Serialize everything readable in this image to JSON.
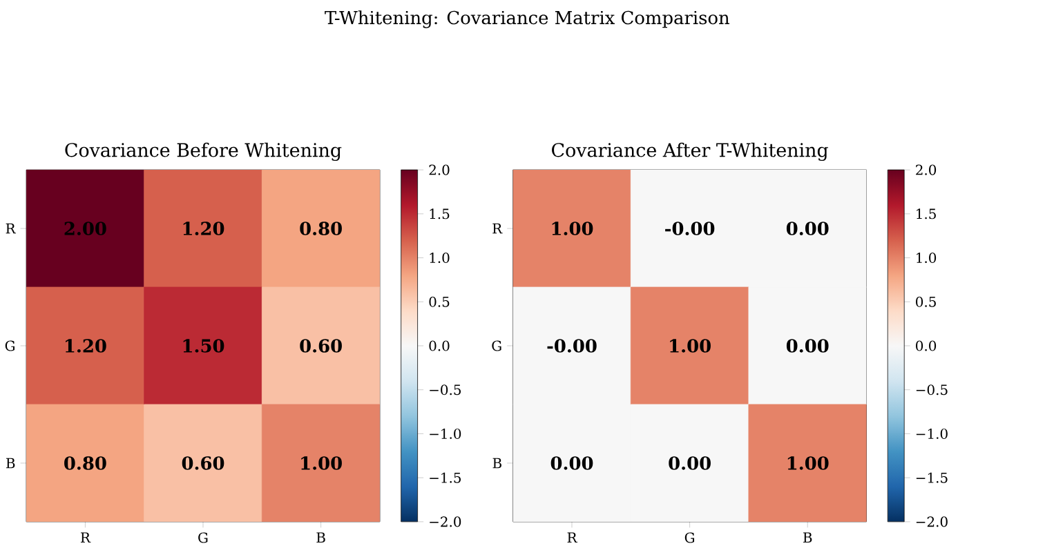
{
  "chart_data": [
    {
      "type": "heatmap",
      "title": "Covariance Before Whitening",
      "annotations": [
        "T-Whitening: Covariance Matrix Comparison"
      ],
      "categories": [
        "R",
        "G",
        "B"
      ],
      "y_categories": [
        "R",
        "G",
        "B"
      ],
      "cells": [
        [
          2.0,
          1.2,
          0.8
        ],
        [
          1.2,
          1.5,
          0.6
        ],
        [
          0.8,
          0.6,
          1.0
        ]
      ],
      "cell_labels": [
        [
          "2.00",
          "1.20",
          "0.80"
        ],
        [
          "1.20",
          "1.50",
          "0.60"
        ],
        [
          "0.80",
          "0.60",
          "1.00"
        ]
      ],
      "clim": [
        -2,
        2
      ],
      "cticks": [
        {
          "value": -2,
          "label": "−2.0"
        },
        {
          "value": -1.5,
          "label": "−1.5"
        },
        {
          "value": -1,
          "label": "−1.0"
        },
        {
          "value": -0.5,
          "label": "−0.5"
        },
        {
          "value": 0,
          "label": "0.0"
        },
        {
          "value": 0.5,
          "label": "0.5"
        },
        {
          "value": 1,
          "label": "1.0"
        },
        {
          "value": 1.5,
          "label": "1.5"
        },
        {
          "value": 2,
          "label": "2.0"
        }
      ]
    },
    {
      "type": "heatmap",
      "title": "Covariance After T-Whitening",
      "categories": [
        "R",
        "G",
        "B"
      ],
      "y_categories": [
        "R",
        "G",
        "B"
      ],
      "cells": [
        [
          1.0,
          0,
          0
        ],
        [
          0,
          1.0,
          0
        ],
        [
          0,
          0,
          1.0
        ]
      ],
      "cell_labels": [
        [
          "1.00",
          "-0.00",
          "0.00"
        ],
        [
          "-0.00",
          "1.00",
          "0.00"
        ],
        [
          "0.00",
          "0.00",
          "1.00"
        ]
      ],
      "clim": [
        -2,
        2
      ],
      "cticks": [
        {
          "value": -2,
          "label": "−2.0"
        },
        {
          "value": -1.5,
          "label": "−1.5"
        },
        {
          "value": -1,
          "label": "−1.0"
        },
        {
          "value": -0.5,
          "label": "−0.5"
        },
        {
          "value": 0,
          "label": "0.0"
        },
        {
          "value": 0.5,
          "label": "0.5"
        },
        {
          "value": 1,
          "label": "1.0"
        },
        {
          "value": 1.5,
          "label": "1.5"
        },
        {
          "value": 2,
          "label": "2.0"
        }
      ]
    }
  ]
}
